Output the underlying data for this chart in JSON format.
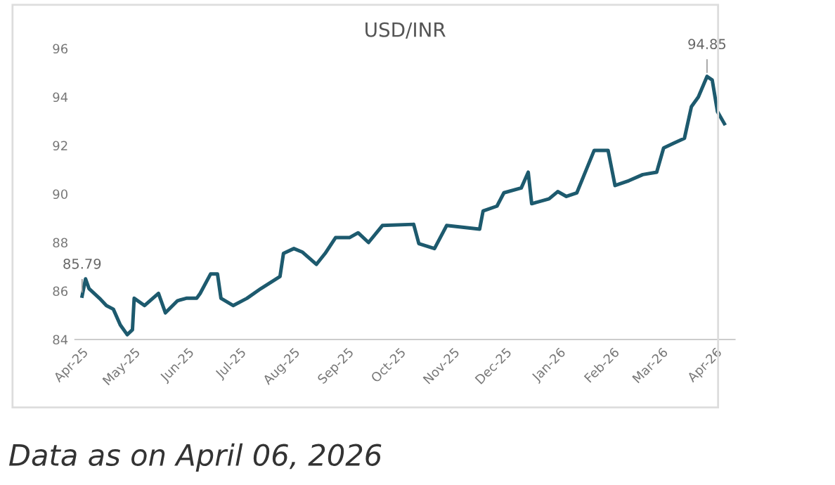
{
  "chart_data": {
    "type": "line",
    "title": "USD/INR",
    "x": [
      "2025-04-01",
      "2025-04-03",
      "2025-04-05",
      "2025-04-11",
      "2025-04-15",
      "2025-04-19",
      "2025-04-23",
      "2025-04-27",
      "2025-04-30",
      "2025-05-01",
      "2025-05-07",
      "2025-05-15",
      "2025-05-19",
      "2025-05-26",
      "2025-05-31",
      "2025-06-06",
      "2025-06-08",
      "2025-06-14",
      "2025-06-18",
      "2025-06-20",
      "2025-06-27",
      "2025-07-05",
      "2025-07-13",
      "2025-07-24",
      "2025-07-26",
      "2025-08-01",
      "2025-08-06",
      "2025-08-14",
      "2025-08-19",
      "2025-08-25",
      "2025-09-02",
      "2025-09-07",
      "2025-09-13",
      "2025-09-21",
      "2025-10-09",
      "2025-10-12",
      "2025-10-21",
      "2025-10-28",
      "2025-11-16",
      "2025-11-18",
      "2025-11-26",
      "2025-11-30",
      "2025-12-10",
      "2025-12-14",
      "2025-12-16",
      "2025-12-26",
      "2025-12-31",
      "2026-01-05",
      "2026-01-11",
      "2026-01-15",
      "2026-01-21",
      "2026-01-29",
      "2026-02-02",
      "2026-02-10",
      "2026-02-18",
      "2026-02-26",
      "2026-03-02",
      "2026-03-08",
      "2026-03-14",
      "2026-03-18",
      "2026-03-22",
      "2026-03-27",
      "2026-03-30",
      "2026-04-02",
      "2026-04-06"
    ],
    "series": [
      {
        "color": "#1d5a6e",
        "values": [
          85.79,
          86.5,
          86.1,
          85.7,
          85.4,
          85.25,
          84.6,
          84.2,
          84.4,
          85.7,
          85.4,
          85.9,
          85.1,
          85.6,
          85.7,
          85.7,
          85.9,
          86.7,
          86.7,
          85.7,
          85.4,
          85.7,
          86.1,
          86.6,
          87.55,
          87.75,
          87.6,
          87.1,
          87.55,
          88.2,
          88.2,
          88.4,
          88.0,
          88.7,
          88.75,
          87.95,
          87.75,
          88.7,
          88.55,
          89.3,
          89.5,
          90.05,
          90.25,
          90.9,
          89.6,
          89.8,
          90.1,
          89.9,
          90.05,
          90.75,
          91.8,
          91.8,
          90.35,
          90.55,
          90.8,
          90.9,
          91.9,
          92.1,
          92.3,
          93.6,
          94.0,
          94.85,
          94.7,
          93.4,
          92.9
        ]
      }
    ],
    "xlim": [
      "2025-03-28",
      "2026-04-12"
    ],
    "xticks": [
      {
        "value": "2025-04-01",
        "label": "Apr-25"
      },
      {
        "value": "2025-05-01",
        "label": "May-25"
      },
      {
        "value": "2025-06-01",
        "label": "Jun-25"
      },
      {
        "value": "2025-07-01",
        "label": "Jul-25"
      },
      {
        "value": "2025-08-01",
        "label": "Aug-25"
      },
      {
        "value": "2025-09-01",
        "label": "Sep-25"
      },
      {
        "value": "2025-10-01",
        "label": "Oct-25"
      },
      {
        "value": "2025-11-01",
        "label": "Nov-25"
      },
      {
        "value": "2025-12-01",
        "label": "Dec-25"
      },
      {
        "value": "2026-01-01",
        "label": "Jan-26"
      },
      {
        "value": "2026-02-01",
        "label": "Feb-26"
      },
      {
        "value": "2026-03-01",
        "label": "Mar-26"
      },
      {
        "value": "2026-04-01",
        "label": "Apr-26"
      }
    ],
    "ylim": [
      84,
      96
    ],
    "yticks": [
      84,
      86,
      88,
      90,
      92,
      94,
      96
    ],
    "grid": false,
    "legend": false,
    "marker": "none",
    "line_style": "solid",
    "annotations": [
      {
        "text": "85.79",
        "x": "2025-04-01",
        "y": 85.79
      },
      {
        "text": "94.85",
        "x": "2026-03-27",
        "y": 94.85
      },
      "Data as on April 06, 2026"
    ]
  }
}
